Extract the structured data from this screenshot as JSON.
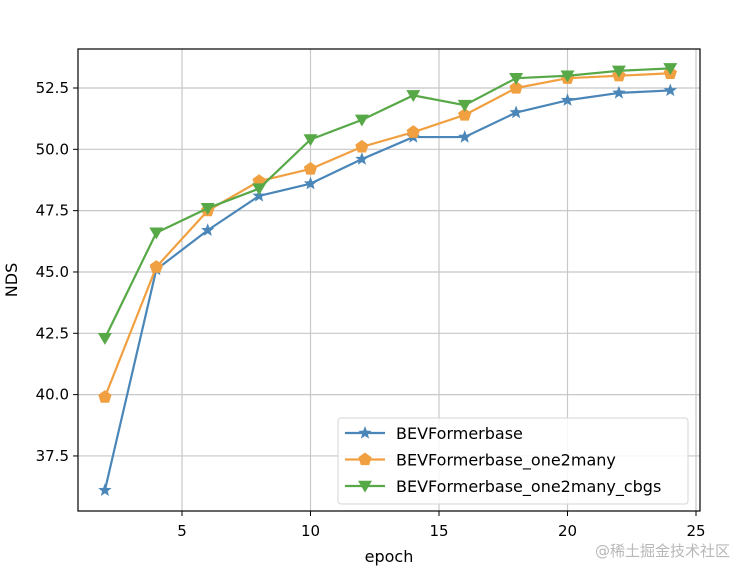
{
  "chart_data": {
    "type": "line",
    "title": "",
    "xlabel": "epoch",
    "ylabel": "NDS",
    "xlim": [
      1.0,
      25.0
    ],
    "ylim": [
      35.3,
      54.1
    ],
    "xticks": [
      5,
      10,
      15,
      20,
      25
    ],
    "xtick_labels": [
      "5",
      "10",
      "15",
      "20",
      "25"
    ],
    "yticks": [
      37.5,
      40.0,
      42.5,
      45.0,
      47.5,
      50.0,
      52.5
    ],
    "ytick_labels": [
      "37.5",
      "40.0",
      "42.5",
      "45.0",
      "47.5",
      "50.0",
      "52.5"
    ],
    "grid": true,
    "legend_position": "lower right",
    "x": [
      2,
      4,
      6,
      8,
      10,
      12,
      14,
      16,
      18,
      20,
      22,
      24
    ],
    "series": [
      {
        "name": "BEVFormerbase",
        "color": "#4a86b8",
        "marker": "star",
        "values": [
          36.1,
          45.1,
          46.7,
          48.1,
          48.6,
          49.6,
          50.5,
          50.5,
          51.5,
          52.0,
          52.3,
          52.4
        ]
      },
      {
        "name": "BEVFormerbase_one2many",
        "color": "#f0a040",
        "marker": "pentagon",
        "values": [
          39.9,
          45.2,
          47.5,
          48.7,
          49.2,
          50.1,
          50.7,
          51.4,
          52.5,
          52.9,
          53.0,
          53.1
        ]
      },
      {
        "name": "BEVFormerbase_one2many_cbgs",
        "color": "#57a847",
        "marker": "triangle-down",
        "values": [
          42.3,
          46.6,
          47.6,
          48.4,
          50.4,
          51.2,
          52.2,
          51.8,
          52.9,
          53.0,
          53.2,
          53.3
        ]
      }
    ]
  },
  "watermark": "@稀土掘金技术社区"
}
